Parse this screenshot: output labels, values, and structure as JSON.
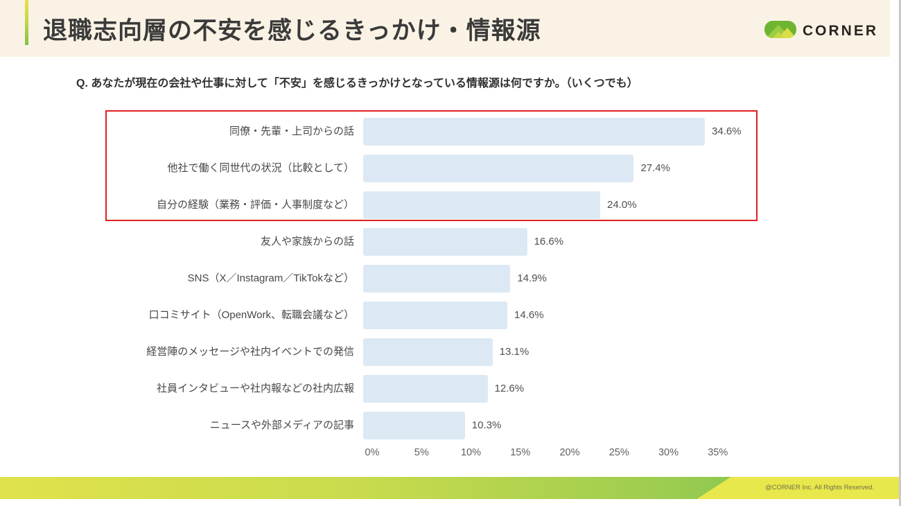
{
  "slide": {
    "title": "退職志向層の不安を感じるきっかけ・情報源",
    "question": "Q. あなたが現在の会社や仕事に対して「不安」を感じるきっかけとなっている情報源は何ですか。（いくつでも）",
    "logo_text": "CORNER",
    "footer_copyright": "@CORNER Inc. All Rights Reserved."
  },
  "chart_data": {
    "type": "bar",
    "orientation": "horizontal",
    "title": "",
    "xlabel": "",
    "ylabel": "",
    "xlim": [
      0,
      35
    ],
    "grid": false,
    "bar_color": "#dce9f4",
    "categories": [
      "同僚・先輩・上司からの話",
      "他社で働く同世代の状況（比較として）",
      "自分の経験（業務・評価・人事制度など）",
      "友人や家族からの話",
      "SNS（X／Instagram／TikTokなど）",
      "口コミサイト（OpenWork、転職会議など）",
      "経営陣のメッセージや社内イベントでの発信",
      "社員インタビューや社内報などの社内広報",
      "ニュースや外部メディアの記事"
    ],
    "values": [
      34.6,
      27.4,
      24.0,
      16.6,
      14.9,
      14.6,
      13.1,
      12.6,
      10.3
    ],
    "value_labels": [
      "34.6%",
      "27.4%",
      "24.0%",
      "16.6%",
      "14.9%",
      "14.6%",
      "13.1%",
      "12.6%",
      "10.3%"
    ],
    "x_ticks": [
      "0%",
      "5%",
      "10%",
      "15%",
      "20%",
      "25%",
      "30%",
      "35%"
    ],
    "x_tick_values": [
      0,
      5,
      10,
      15,
      20,
      25,
      30,
      35
    ],
    "highlight": {
      "rows": [
        0,
        1,
        2
      ],
      "border_color": "#df2020"
    }
  },
  "colors": {
    "header_background": "#faf3e5",
    "accent_gradient_top": "#ecdf49",
    "accent_gradient_bottom": "#7fbf4d",
    "bar_fill": "#dce9f4",
    "highlight_border": "#df2020",
    "footer_green": "#8ac74f",
    "footer_yellow": "#e8e74b",
    "logo_green": "#6eb532"
  }
}
